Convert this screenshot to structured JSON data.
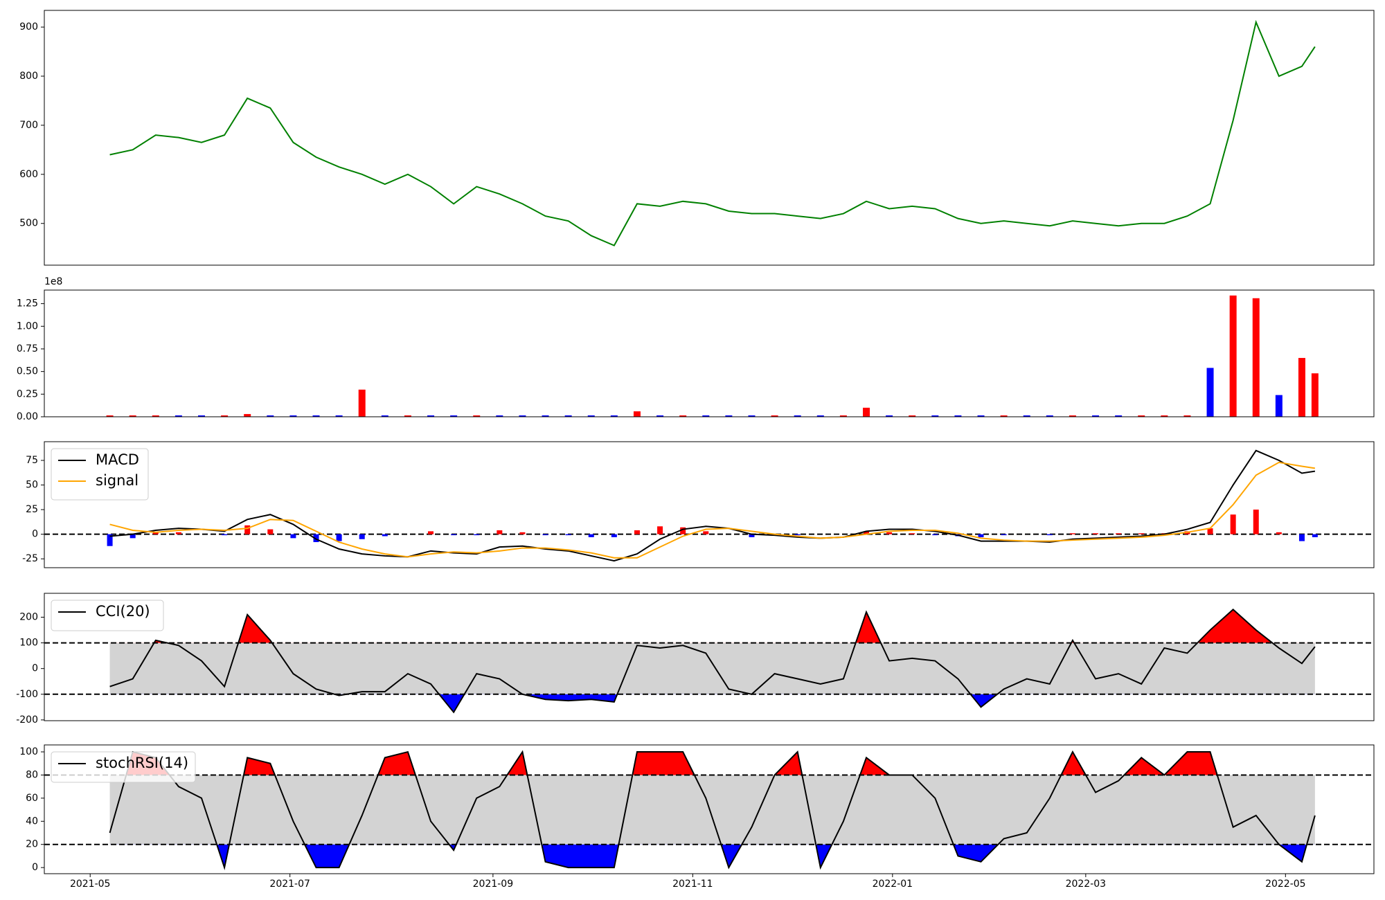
{
  "chart_data": [
    {
      "type": "line",
      "xlim": [
        "2021-04-17",
        "2022-05-28"
      ],
      "ylim": [
        415,
        934
      ],
      "yticks": [
        500,
        600,
        700,
        800,
        900
      ],
      "x": [
        "2021-05-07",
        "2021-05-14",
        "2021-05-21",
        "2021-05-28",
        "2021-06-04",
        "2021-06-11",
        "2021-06-18",
        "2021-06-25",
        "2021-07-02",
        "2021-07-09",
        "2021-07-16",
        "2021-07-23",
        "2021-07-30",
        "2021-08-06",
        "2021-08-13",
        "2021-08-20",
        "2021-08-27",
        "2021-09-03",
        "2021-09-10",
        "2021-09-17",
        "2021-09-24",
        "2021-10-01",
        "2021-10-08",
        "2021-10-15",
        "2021-10-22",
        "2021-10-29",
        "2021-11-05",
        "2021-11-12",
        "2021-11-19",
        "2021-11-26",
        "2021-12-03",
        "2021-12-10",
        "2021-12-17",
        "2021-12-24",
        "2021-12-31",
        "2022-01-07",
        "2022-01-14",
        "2022-01-21",
        "2022-01-28",
        "2022-02-04",
        "2022-02-11",
        "2022-02-18",
        "2022-02-25",
        "2022-03-04",
        "2022-03-11",
        "2022-03-18",
        "2022-03-25",
        "2022-04-01",
        "2022-04-08",
        "2022-04-15",
        "2022-04-22",
        "2022-04-29",
        "2022-05-06",
        "2022-05-10"
      ],
      "series": [
        {
          "color": "green",
          "values": [
            640,
            650,
            680,
            675,
            665,
            680,
            755,
            735,
            665,
            635,
            615,
            600,
            580,
            600,
            575,
            540,
            575,
            560,
            540,
            515,
            505,
            475,
            455,
            540,
            535,
            545,
            540,
            525,
            520,
            520,
            515,
            510,
            520,
            545,
            530,
            535,
            530,
            510,
            500,
            505,
            500,
            495,
            505,
            500,
            495,
            500,
            500,
            515,
            540,
            710,
            910,
            800,
            820,
            860
          ]
        }
      ]
    },
    {
      "type": "bar",
      "xlim": [
        "2021-04-17",
        "2022-05-28"
      ],
      "ylim": [
        0,
        140000000
      ],
      "offset_label": "1e8",
      "yticks": [
        {
          "value": 0,
          "label": "0.00"
        },
        {
          "value": 25000000,
          "label": "0.25"
        },
        {
          "value": 50000000,
          "label": "0.50"
        },
        {
          "value": 75000000,
          "label": "0.75"
        },
        {
          "value": 100000000,
          "label": "1.00"
        },
        {
          "value": 125000000,
          "label": "1.25"
        }
      ],
      "x": [
        "2021-05-07",
        "2021-05-14",
        "2021-05-21",
        "2021-05-28",
        "2021-06-04",
        "2021-06-11",
        "2021-06-18",
        "2021-06-25",
        "2021-07-02",
        "2021-07-09",
        "2021-07-16",
        "2021-07-23",
        "2021-07-30",
        "2021-08-06",
        "2021-08-13",
        "2021-08-20",
        "2021-08-27",
        "2021-09-03",
        "2021-09-10",
        "2021-09-17",
        "2021-09-24",
        "2021-10-01",
        "2021-10-08",
        "2021-10-15",
        "2021-10-22",
        "2021-10-29",
        "2021-11-05",
        "2021-11-12",
        "2021-11-19",
        "2021-11-26",
        "2021-12-03",
        "2021-12-10",
        "2021-12-17",
        "2021-12-24",
        "2021-12-31",
        "2022-01-07",
        "2022-01-14",
        "2022-01-21",
        "2022-01-28",
        "2022-02-04",
        "2022-02-11",
        "2022-02-18",
        "2022-02-25",
        "2022-03-04",
        "2022-03-11",
        "2022-03-18",
        "2022-03-25",
        "2022-04-01",
        "2022-04-08",
        "2022-04-15",
        "2022-04-22",
        "2022-04-29",
        "2022-05-06",
        "2022-05-10"
      ],
      "values": [
        1500000,
        1500000,
        1500000,
        1500000,
        1500000,
        1500000,
        3000000,
        1500000,
        1500000,
        1500000,
        1500000,
        30000000,
        1500000,
        1500000,
        1500000,
        1500000,
        1500000,
        1500000,
        1500000,
        1500000,
        1500000,
        1500000,
        1500000,
        6000000,
        1500000,
        1500000,
        1500000,
        1500000,
        1500000,
        1500000,
        1500000,
        1500000,
        1500000,
        10000000,
        1500000,
        1500000,
        1500000,
        1500000,
        1500000,
        1500000,
        1500000,
        1500000,
        1500000,
        1500000,
        1500000,
        1500000,
        1500000,
        1500000,
        54000000,
        134000000,
        131000000,
        24000000,
        65000000,
        48000000
      ],
      "colors": [
        "red",
        "red",
        "red",
        "blue",
        "blue",
        "red",
        "red",
        "blue",
        "blue",
        "blue",
        "blue",
        "red",
        "blue",
        "red",
        "blue",
        "blue",
        "red",
        "blue",
        "blue",
        "blue",
        "blue",
        "blue",
        "blue",
        "red",
        "blue",
        "red",
        "blue",
        "blue",
        "blue",
        "red",
        "blue",
        "blue",
        "red",
        "red",
        "blue",
        "red",
        "blue",
        "blue",
        "blue",
        "red",
        "blue",
        "blue",
        "red",
        "blue",
        "blue",
        "red",
        "red",
        "red",
        "blue",
        "red",
        "red",
        "blue",
        "red",
        "red"
      ]
    },
    {
      "type": "line",
      "xlim": [
        "2021-04-17",
        "2022-05-28"
      ],
      "ylim": [
        -34,
        94
      ],
      "yticks": [
        -25,
        0,
        25,
        50,
        75
      ],
      "reference_lines": [
        0
      ],
      "legend": "upper-left",
      "x": [
        "2021-05-07",
        "2021-05-14",
        "2021-05-21",
        "2021-05-28",
        "2021-06-04",
        "2021-06-11",
        "2021-06-18",
        "2021-06-25",
        "2021-07-02",
        "2021-07-09",
        "2021-07-16",
        "2021-07-23",
        "2021-07-30",
        "2021-08-06",
        "2021-08-13",
        "2021-08-20",
        "2021-08-27",
        "2021-09-03",
        "2021-09-10",
        "2021-09-17",
        "2021-09-24",
        "2021-10-01",
        "2021-10-08",
        "2021-10-15",
        "2021-10-22",
        "2021-10-29",
        "2021-11-05",
        "2021-11-12",
        "2021-11-19",
        "2021-11-26",
        "2021-12-03",
        "2021-12-10",
        "2021-12-17",
        "2021-12-24",
        "2021-12-31",
        "2022-01-07",
        "2022-01-14",
        "2022-01-21",
        "2022-01-28",
        "2022-02-04",
        "2022-02-11",
        "2022-02-18",
        "2022-02-25",
        "2022-03-04",
        "2022-03-11",
        "2022-03-18",
        "2022-03-25",
        "2022-04-01",
        "2022-04-08",
        "2022-04-15",
        "2022-04-22",
        "2022-04-29",
        "2022-05-06",
        "2022-05-10"
      ],
      "series": [
        {
          "name": "MACD",
          "color": "black",
          "values": [
            -2,
            0,
            4,
            6,
            5,
            3,
            15,
            20,
            10,
            -5,
            -15,
            -20,
            -22,
            -23,
            -17,
            -19,
            -20,
            -13,
            -12,
            -15,
            -17,
            -22,
            -27,
            -20,
            -5,
            5,
            8,
            6,
            0,
            -1,
            -3,
            -4,
            -3,
            3,
            5,
            5,
            3,
            -1,
            -7,
            -7,
            -7,
            -8,
            -5,
            -4,
            -3,
            -2,
            0,
            5,
            12,
            50,
            85,
            75,
            62,
            64
          ]
        },
        {
          "name": "signal",
          "color": "orange",
          "values": [
            10,
            4,
            2,
            4,
            5,
            4,
            6,
            15,
            14,
            3,
            -8,
            -15,
            -20,
            -23,
            -20,
            -18,
            -19,
            -17,
            -14,
            -14,
            -16,
            -19,
            -24,
            -24,
            -13,
            -2,
            5,
            6,
            3,
            0,
            -2,
            -4,
            -3,
            0,
            3,
            4,
            4,
            1,
            -4,
            -6,
            -7,
            -7,
            -6,
            -5,
            -4,
            -3,
            -1,
            2,
            6,
            30,
            60,
            73,
            69,
            67
          ]
        }
      ],
      "histogram": {
        "positive_color": "red",
        "negative_color": "blue",
        "values": [
          -12,
          -4,
          2,
          2,
          0,
          -1,
          9,
          5,
          -4,
          -8,
          -7,
          -5,
          -2,
          0,
          3,
          -1,
          -1,
          4,
          2,
          -1,
          -1,
          -3,
          -3,
          4,
          8,
          7,
          3,
          0,
          -3,
          -1,
          -1,
          0,
          0,
          3,
          2,
          1,
          -1,
          -2,
          -3,
          -1,
          0,
          -1,
          1,
          1,
          1,
          1,
          1,
          3,
          6,
          20,
          25,
          2,
          -7,
          -3
        ]
      }
    },
    {
      "type": "line",
      "xlim": [
        "2021-04-17",
        "2022-05-28"
      ],
      "ylim": [
        -203,
        293
      ],
      "yticks": [
        -200,
        -100,
        0,
        100,
        200
      ],
      "legend": "upper-left",
      "bands": {
        "upper": 100,
        "lower": -100,
        "upper_color": "red",
        "lower_color": "blue",
        "fill_color": "lightgray"
      },
      "x": [
        "2021-05-07",
        "2021-05-14",
        "2021-05-21",
        "2021-05-28",
        "2021-06-04",
        "2021-06-11",
        "2021-06-18",
        "2021-06-25",
        "2021-07-02",
        "2021-07-09",
        "2021-07-16",
        "2021-07-23",
        "2021-07-30",
        "2021-08-06",
        "2021-08-13",
        "2021-08-20",
        "2021-08-27",
        "2021-09-03",
        "2021-09-10",
        "2021-09-17",
        "2021-09-24",
        "2021-10-01",
        "2021-10-08",
        "2021-10-15",
        "2021-10-22",
        "2021-10-29",
        "2021-11-05",
        "2021-11-12",
        "2021-11-19",
        "2021-11-26",
        "2021-12-03",
        "2021-12-10",
        "2021-12-17",
        "2021-12-24",
        "2021-12-31",
        "2022-01-07",
        "2022-01-14",
        "2022-01-21",
        "2022-01-28",
        "2022-02-04",
        "2022-02-11",
        "2022-02-18",
        "2022-02-25",
        "2022-03-04",
        "2022-03-11",
        "2022-03-18",
        "2022-03-25",
        "2022-04-01",
        "2022-04-08",
        "2022-04-15",
        "2022-04-22",
        "2022-04-29",
        "2022-05-06",
        "2022-05-10"
      ],
      "series": [
        {
          "name": "CCI(20)",
          "color": "black",
          "values": [
            -70,
            -40,
            110,
            90,
            30,
            -70,
            210,
            110,
            -20,
            -80,
            -105,
            -90,
            -90,
            -20,
            -60,
            -170,
            -20,
            -40,
            -100,
            -120,
            -125,
            -120,
            -130,
            90,
            80,
            90,
            60,
            -80,
            -100,
            -20,
            -40,
            -60,
            -40,
            220,
            30,
            40,
            30,
            -40,
            -150,
            -80,
            -40,
            -60,
            110,
            -40,
            -20,
            -60,
            80,
            60,
            150,
            230,
            150,
            80,
            20,
            85
          ]
        }
      ]
    },
    {
      "type": "line",
      "xlim": [
        "2021-04-17",
        "2022-05-28"
      ],
      "ylim": [
        -5.3,
        106
      ],
      "yticks": [
        0,
        20,
        40,
        60,
        80,
        100
      ],
      "legend": "upper-left",
      "bands": {
        "upper": 80,
        "lower": 20,
        "upper_color": "red",
        "lower_color": "blue",
        "fill_color": "lightgray"
      },
      "xticks": [
        {
          "value": "2021-05-01",
          "label": "2021-05"
        },
        {
          "value": "2021-07-01",
          "label": "2021-07"
        },
        {
          "value": "2021-09-01",
          "label": "2021-09"
        },
        {
          "value": "2021-11-01",
          "label": "2021-11"
        },
        {
          "value": "2022-01-01",
          "label": "2022-01"
        },
        {
          "value": "2022-03-01",
          "label": "2022-03"
        },
        {
          "value": "2022-05-01",
          "label": "2022-05"
        }
      ],
      "x": [
        "2021-05-07",
        "2021-05-14",
        "2021-05-21",
        "2021-05-28",
        "2021-06-04",
        "2021-06-11",
        "2021-06-18",
        "2021-06-25",
        "2021-07-02",
        "2021-07-09",
        "2021-07-16",
        "2021-07-23",
        "2021-07-30",
        "2021-08-06",
        "2021-08-13",
        "2021-08-20",
        "2021-08-27",
        "2021-09-03",
        "2021-09-10",
        "2021-09-17",
        "2021-09-24",
        "2021-10-01",
        "2021-10-08",
        "2021-10-15",
        "2021-10-22",
        "2021-10-29",
        "2021-11-05",
        "2021-11-12",
        "2021-11-19",
        "2021-11-26",
        "2021-12-03",
        "2021-12-10",
        "2021-12-17",
        "2021-12-24",
        "2021-12-31",
        "2022-01-07",
        "2022-01-14",
        "2022-01-21",
        "2022-01-28",
        "2022-02-04",
        "2022-02-11",
        "2022-02-18",
        "2022-02-25",
        "2022-03-04",
        "2022-03-11",
        "2022-03-18",
        "2022-03-25",
        "2022-04-01",
        "2022-04-08",
        "2022-04-15",
        "2022-04-22",
        "2022-04-29",
        "2022-05-06",
        "2022-05-10"
      ],
      "series": [
        {
          "name": "stochRSI(14)",
          "color": "black",
          "values": [
            30,
            100,
            95,
            70,
            60,
            0,
            95,
            90,
            40,
            0,
            0,
            45,
            95,
            100,
            40,
            15,
            60,
            70,
            100,
            5,
            0,
            0,
            0,
            100,
            100,
            100,
            60,
            0,
            35,
            80,
            100,
            0,
            40,
            95,
            80,
            80,
            60,
            10,
            5,
            25,
            30,
            60,
            100,
            65,
            75,
            95,
            80,
            100,
            100,
            35,
            45,
            20,
            5,
            45
          ]
        }
      ]
    }
  ]
}
